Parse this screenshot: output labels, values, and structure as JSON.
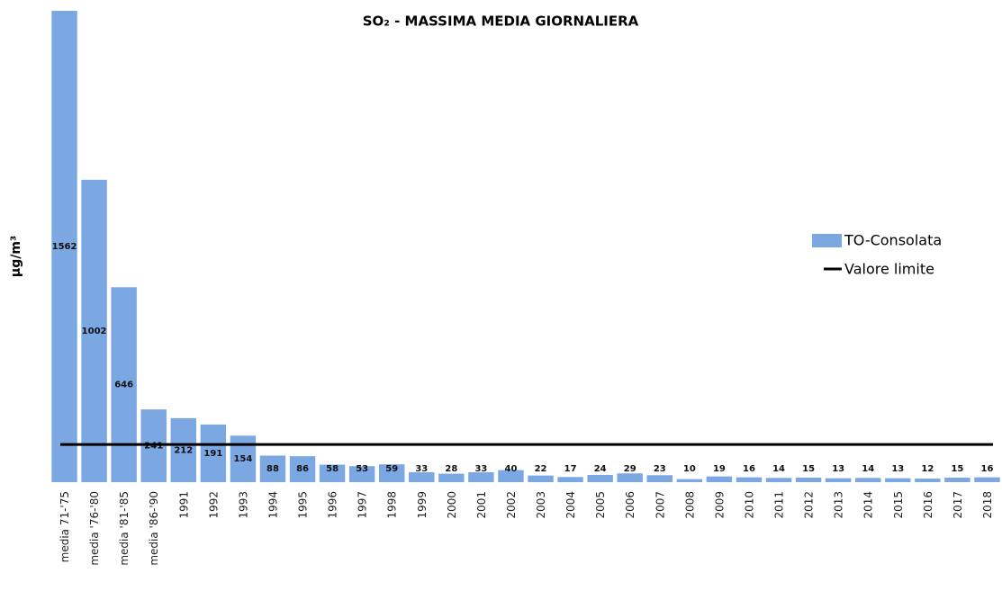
{
  "chart_data": {
    "type": "bar",
    "title": "SO₂ - MASSIMA MEDIA GIORNALIERA",
    "y_label": "µg/m³",
    "categories": [
      "media 71-'75",
      "media '76-'80",
      "media '81-'85",
      "media '86-'90",
      "1991",
      "1992",
      "1993",
      "1994",
      "1995",
      "1996",
      "1997",
      "1998",
      "1999",
      "2000",
      "2001",
      "2002",
      "2003",
      "2004",
      "2005",
      "2006",
      "2007",
      "2008",
      "2009",
      "2010",
      "2011",
      "2012",
      "2013",
      "2014",
      "2015",
      "2016",
      "2017",
      "2018"
    ],
    "series": [
      {
        "name": "TO-Consolata",
        "color": "#7ba7e3",
        "values": [
          1562,
          1002,
          646,
          241,
          212,
          191,
          154,
          88,
          86,
          58,
          53,
          59,
          33,
          28,
          33,
          40,
          22,
          17,
          24,
          29,
          23,
          10,
          19,
          16,
          14,
          15,
          13,
          14,
          13,
          12,
          15,
          16
        ]
      }
    ],
    "limit": {
      "name": "Valore limite",
      "value": 125,
      "color": "#000000"
    },
    "ylim": [
      0,
      1562
    ],
    "legend": "right"
  }
}
